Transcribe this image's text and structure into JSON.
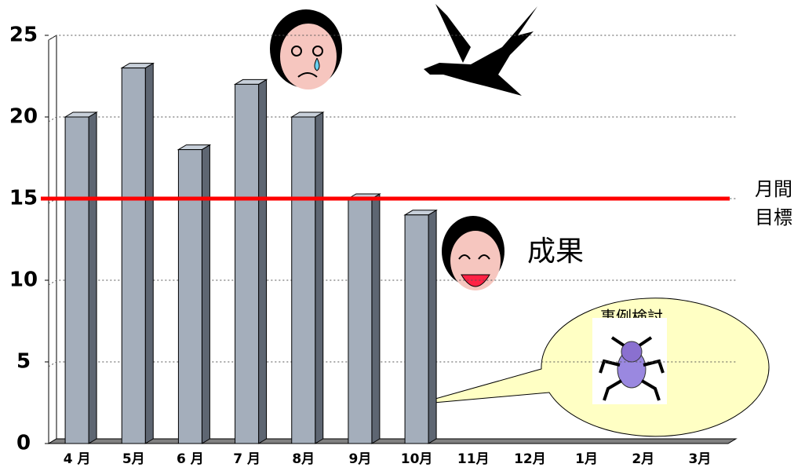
{
  "chart_data": {
    "type": "bar",
    "categories": [
      "4 月",
      "5月",
      "6 月",
      "7 月",
      "8月",
      "9月",
      "10月",
      "11月",
      "12月",
      "1月",
      "2月",
      "3月"
    ],
    "values": [
      20,
      23,
      18,
      22,
      20,
      15,
      14,
      null,
      null,
      null,
      null,
      null
    ],
    "color": "#a4aebb",
    "ylim": [
      0,
      25
    ],
    "yticks": [
      0,
      5,
      10,
      15,
      20,
      25
    ],
    "grid": true,
    "target": {
      "value": 15,
      "label": [
        "月間",
        "目標"
      ],
      "color": "#ff0000"
    },
    "annotations": [
      "成果",
      "事例検討"
    ]
  }
}
